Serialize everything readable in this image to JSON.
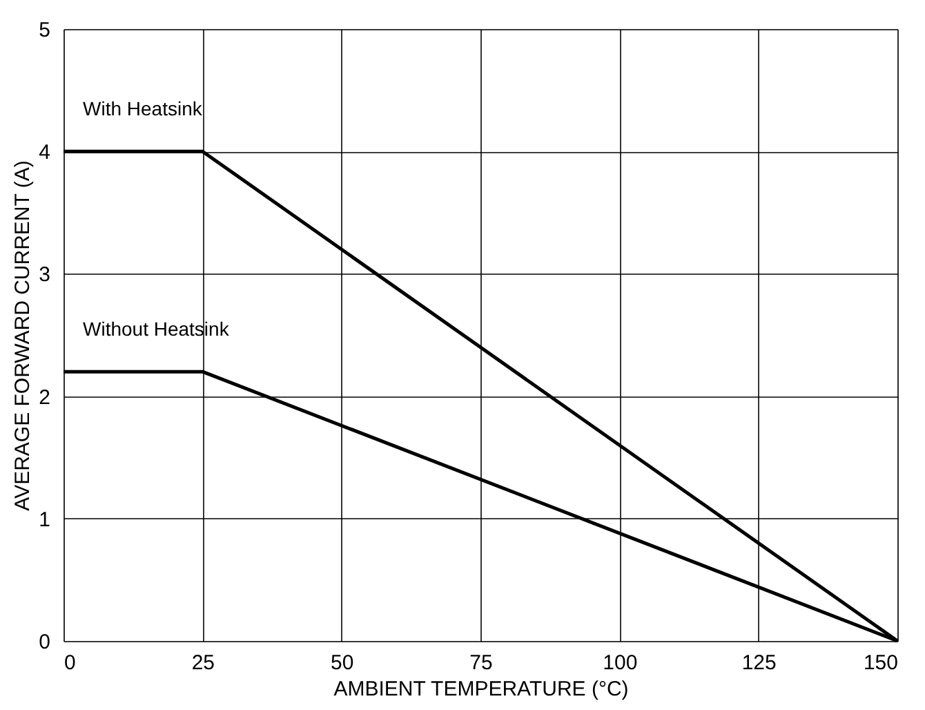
{
  "chart_data": {
    "type": "line",
    "xlabel": "AMBIENT TEMPERATURE (°C)",
    "ylabel": "AVERAGE FORWARD CURRENT (A)",
    "xlim": [
      0,
      150
    ],
    "xticks": [
      0,
      25,
      50,
      75,
      100,
      125,
      150
    ],
    "ylim": [
      0,
      5
    ],
    "yticks": [
      0,
      1,
      2,
      3,
      4,
      5
    ],
    "grid": true,
    "line_style": "solid",
    "series": [
      {
        "name": "With Heatsink",
        "color": "#000000",
        "x": [
          0,
          25,
          150
        ],
        "values": [
          4,
          4,
          0
        ]
      },
      {
        "name": "Without Heatsink",
        "color": "#000000",
        "x": [
          0,
          25,
          150
        ],
        "values": [
          2.2,
          2.2,
          0
        ]
      }
    ]
  }
}
